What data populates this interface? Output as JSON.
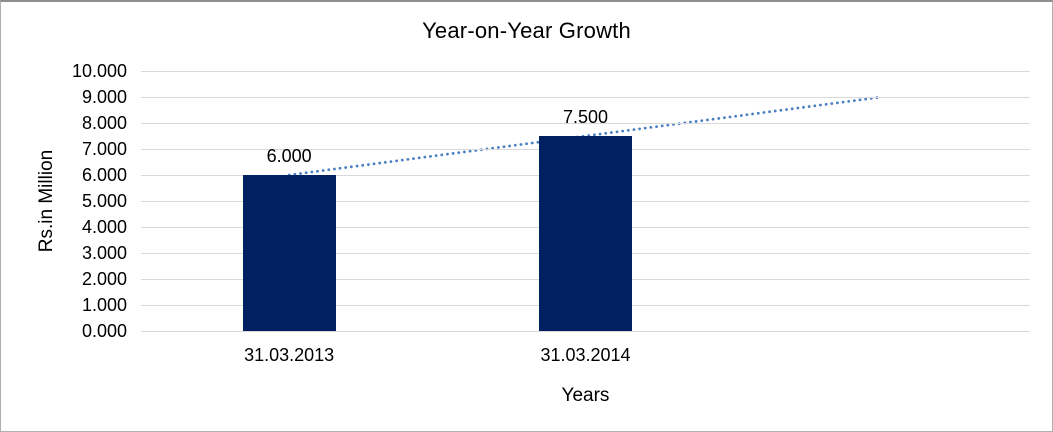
{
  "chart": {
    "title": "Year-on-Year Growth",
    "x_axis_title": "Years",
    "y_axis_title": "Rs.in Million"
  },
  "chart_data": {
    "type": "bar",
    "title": "Year-on-Year Growth",
    "xlabel": "Years",
    "ylabel": "Rs.in Million",
    "categories": [
      "31.03.2013",
      "31.03.2014"
    ],
    "values": [
      6.0,
      7.5
    ],
    "bar_labels": [
      "6.000",
      "7.500"
    ],
    "y_ticks": [
      "10.000",
      "9.000",
      "8.000",
      "7.000",
      "6.000",
      "5.000",
      "4.000",
      "3.000",
      "2.000",
      "1.000",
      "0.000"
    ],
    "ylim": [
      0,
      10
    ],
    "category_slots": 3,
    "grid": true,
    "legend": "none",
    "bar_color": "#002060",
    "gridline_color": "#d9d9d9",
    "trendline": {
      "style": "dotted",
      "color": "#4a7fc1",
      "points": [
        {
          "slot": 0,
          "value": 6.0
        },
        {
          "slot": 2,
          "value": 9.0
        }
      ]
    }
  }
}
